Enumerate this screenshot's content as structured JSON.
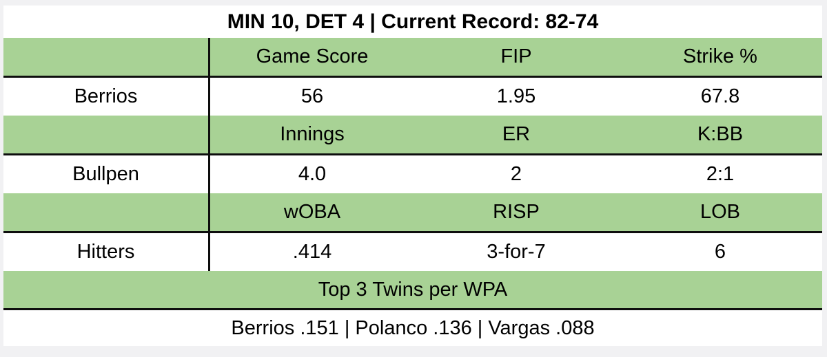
{
  "colors": {
    "page_background": "#f1f1f3",
    "table_background": "#ffffff",
    "band_green": "#a8d295",
    "border_black": "#0e0e0e",
    "text": "#000000"
  },
  "scoreboard": {
    "title": "MIN 10, DET 4 | Current Record: 82-74",
    "sections": [
      {
        "label": "Berrios",
        "headers": [
          "Game Score",
          "FIP",
          "Strike %"
        ],
        "values": [
          "56",
          "1.95",
          "67.8"
        ]
      },
      {
        "label": "Bullpen",
        "headers": [
          "Innings",
          "ER",
          "K:BB"
        ],
        "values": [
          "4.0",
          "2",
          "2:1"
        ]
      },
      {
        "label": "Hitters",
        "headers": [
          "wOBA",
          "RISP",
          "LOB"
        ],
        "values": [
          ".414",
          "3-for-7",
          "6"
        ]
      }
    ],
    "footer": {
      "header": "Top 3 Twins per WPA",
      "value": "Berrios .151 | Polanco .136 | Vargas .088"
    }
  },
  "chart_data": {
    "type": "table",
    "title": "MIN 10, DET 4 | Current Record: 82-74",
    "rows": [
      {
        "entity": "Berrios",
        "stats": {
          "Game Score": 56,
          "FIP": 1.95,
          "Strike %": 67.8
        }
      },
      {
        "entity": "Bullpen",
        "stats": {
          "Innings": 4.0,
          "ER": 2,
          "K:BB": "2:1"
        }
      },
      {
        "entity": "Hitters",
        "stats": {
          "wOBA": 0.414,
          "RISP": "3-for-7",
          "LOB": 6
        }
      }
    ],
    "footer": {
      "label": "Top 3 Twins per WPA",
      "entries": [
        {
          "player": "Berrios",
          "wpa": 0.151
        },
        {
          "player": "Polanco",
          "wpa": 0.136
        },
        {
          "player": "Vargas",
          "wpa": 0.088
        }
      ]
    }
  }
}
